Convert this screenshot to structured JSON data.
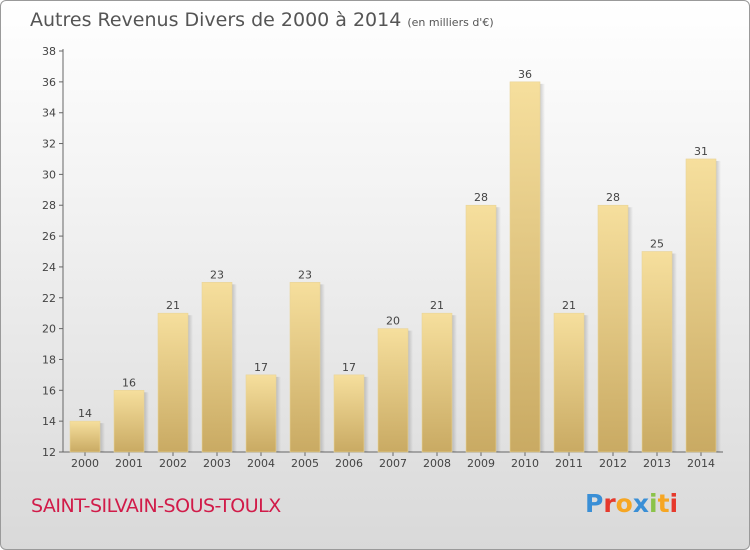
{
  "header": {
    "title": "Autres Revenus Divers de 2000 à 2014",
    "subtitle": "(en milliers d'€)"
  },
  "footer": {
    "town": "SAINT-SILVAIN-SOUS-TOULX",
    "logo": "Proxiti"
  },
  "colors": {
    "bar_top": "#f6df9d",
    "bar_bottom": "#c9aa63",
    "town": "#d11b49"
  },
  "chart_data": {
    "type": "bar",
    "categories": [
      "2000",
      "2001",
      "2002",
      "2003",
      "2004",
      "2005",
      "2006",
      "2007",
      "2008",
      "2009",
      "2010",
      "2011",
      "2012",
      "2013",
      "2014"
    ],
    "values": [
      14,
      16,
      21,
      23,
      17,
      23,
      17,
      20,
      21,
      28,
      36,
      21,
      28,
      25,
      31
    ],
    "title": "Autres Revenus Divers de 2000 à 2014",
    "ylim": [
      12,
      38
    ],
    "yticks": [
      12,
      14,
      16,
      18,
      20,
      22,
      24,
      26,
      28,
      30,
      32,
      34,
      36,
      38
    ],
    "grid": false
  }
}
